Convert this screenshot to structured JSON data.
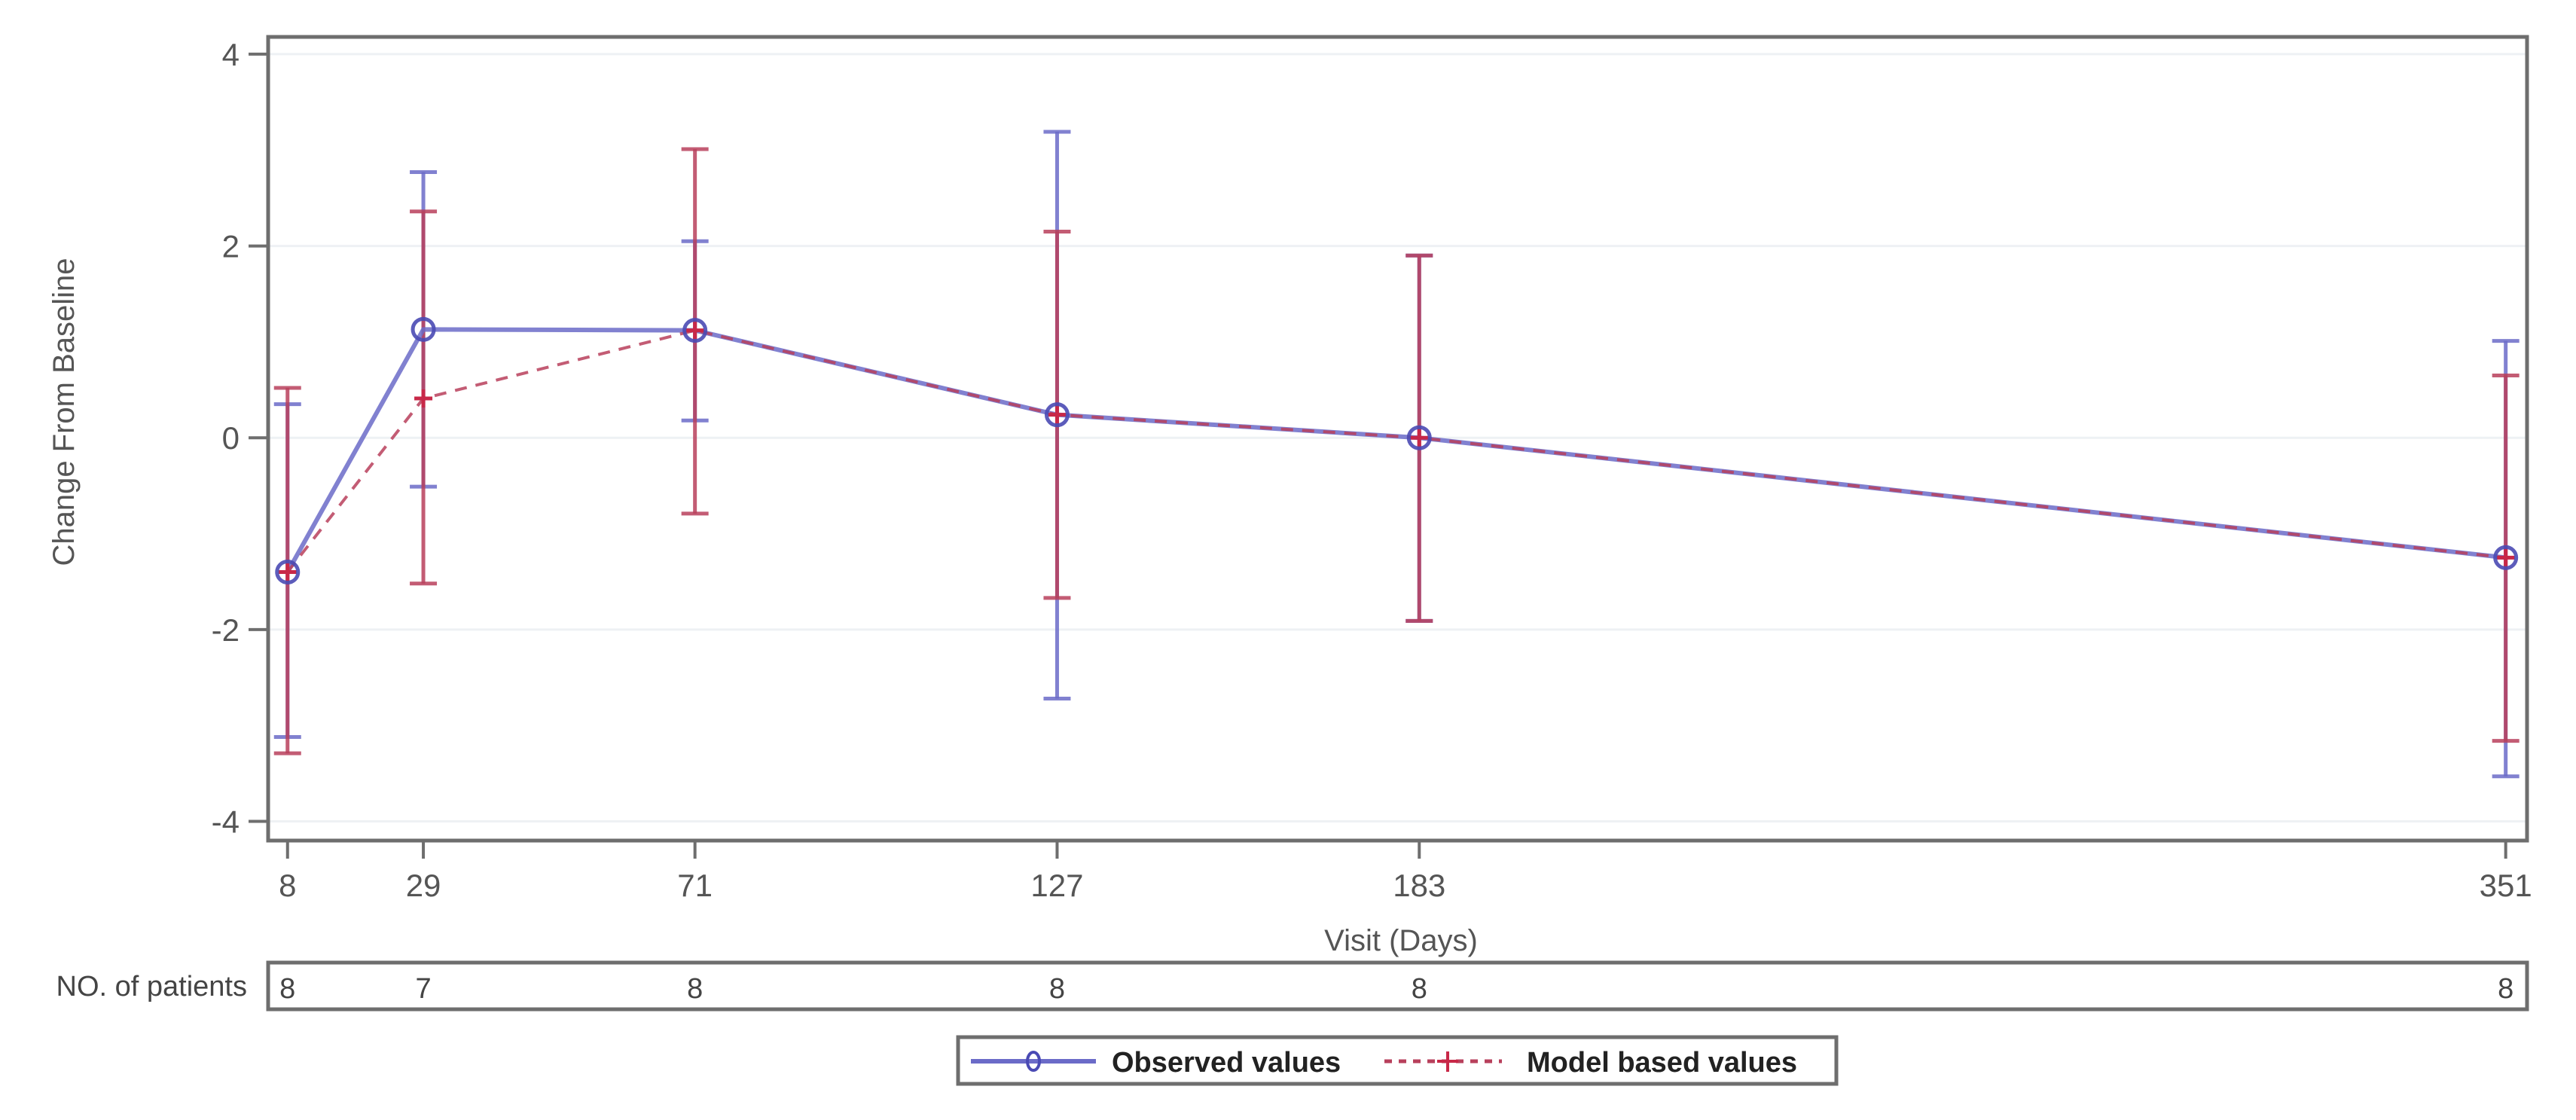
{
  "chart_data": {
    "type": "line",
    "title": "",
    "xlabel": "Visit (Days)",
    "ylabel": "Change From Baseline",
    "x": [
      8,
      29,
      71,
      127,
      183,
      351
    ],
    "x_tick_labels": [
      "8",
      "29",
      "71",
      "127",
      "183",
      "351"
    ],
    "xlim": [
      5,
      354.3
    ],
    "y_ticks": [
      4,
      2,
      0,
      -2,
      -4
    ],
    "y_tick_labels": [
      "4",
      "2",
      "0",
      "-2",
      "-4"
    ],
    "ylim": [
      -4.2,
      4.18
    ],
    "grid": "horizontal",
    "legend_position": "bottom",
    "series": [
      {
        "name": "Observed values",
        "color": "#6b6bc8",
        "marker": "circle",
        "line_style": "solid",
        "values": [
          -1.4,
          1.13,
          1.12,
          0.24,
          0.0,
          -1.25
        ],
        "error_upper": [
          0.35,
          2.77,
          2.05,
          3.19,
          1.9,
          1.01
        ],
        "error_lower": [
          -3.12,
          -0.51,
          0.18,
          -2.72,
          -1.91,
          -3.53
        ]
      },
      {
        "name": "Model based values",
        "color": "#b8405c",
        "marker": "plus",
        "line_style": "dashed",
        "values": [
          -1.4,
          0.41,
          1.12,
          0.24,
          0.0,
          -1.25
        ],
        "error_upper": [
          0.52,
          2.36,
          3.01,
          2.15,
          1.9,
          0.65
        ],
        "error_lower": [
          -3.29,
          -1.52,
          -0.79,
          -1.67,
          -1.91,
          -3.16
        ]
      }
    ],
    "patients_table": {
      "label": "NO. of patients",
      "values": [
        "8",
        "7",
        "8",
        "8",
        "8",
        "8"
      ]
    }
  },
  "legend": {
    "observed_label": "Observed values",
    "model_label": "Model based values"
  },
  "colors": {
    "observed": "#6b6bc8",
    "observed_marker": "#4a4ab4",
    "model": "#b8405c",
    "model_marker": "#c82848",
    "frame": "#6e6e6e",
    "grid": "#eef1f4"
  }
}
